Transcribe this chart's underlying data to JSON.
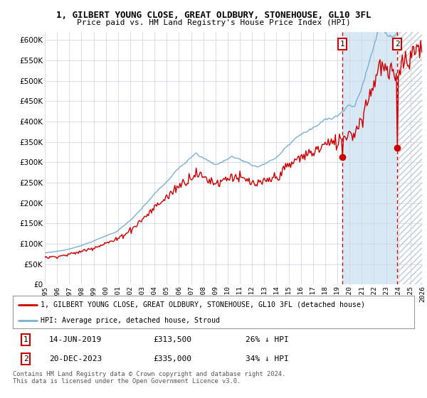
{
  "title1": "1, GILBERT YOUNG CLOSE, GREAT OLDBURY, STONEHOUSE, GL10 3FL",
  "title2": "Price paid vs. HM Land Registry's House Price Index (HPI)",
  "legend_label1": "1, GILBERT YOUNG CLOSE, GREAT OLDBURY, STONEHOUSE, GL10 3FL (detached house)",
  "legend_label2": "HPI: Average price, detached house, Stroud",
  "sale1_date": "14-JUN-2019",
  "sale1_price": 313500,
  "sale1_label": "26% ↓ HPI",
  "sale2_date": "20-DEC-2023",
  "sale2_price": 335000,
  "sale2_label": "34% ↓ HPI",
  "footnote": "Contains HM Land Registry data © Crown copyright and database right 2024.\nThis data is licensed under the Open Government Licence v3.0.",
  "hpi_color": "#7bafd4",
  "price_color": "#cc0000",
  "marker_color": "#cc0000",
  "shade_color": "#d8e8f5",
  "hatch_color": "#c0c8d0",
  "background_plot": "#ffffff",
  "background_fig": "#ffffff",
  "grid_color": "#d0d8e0",
  "ylim": [
    0,
    620000
  ],
  "yticks": [
    0,
    50000,
    100000,
    150000,
    200000,
    250000,
    300000,
    350000,
    400000,
    450000,
    500000,
    550000,
    600000
  ]
}
